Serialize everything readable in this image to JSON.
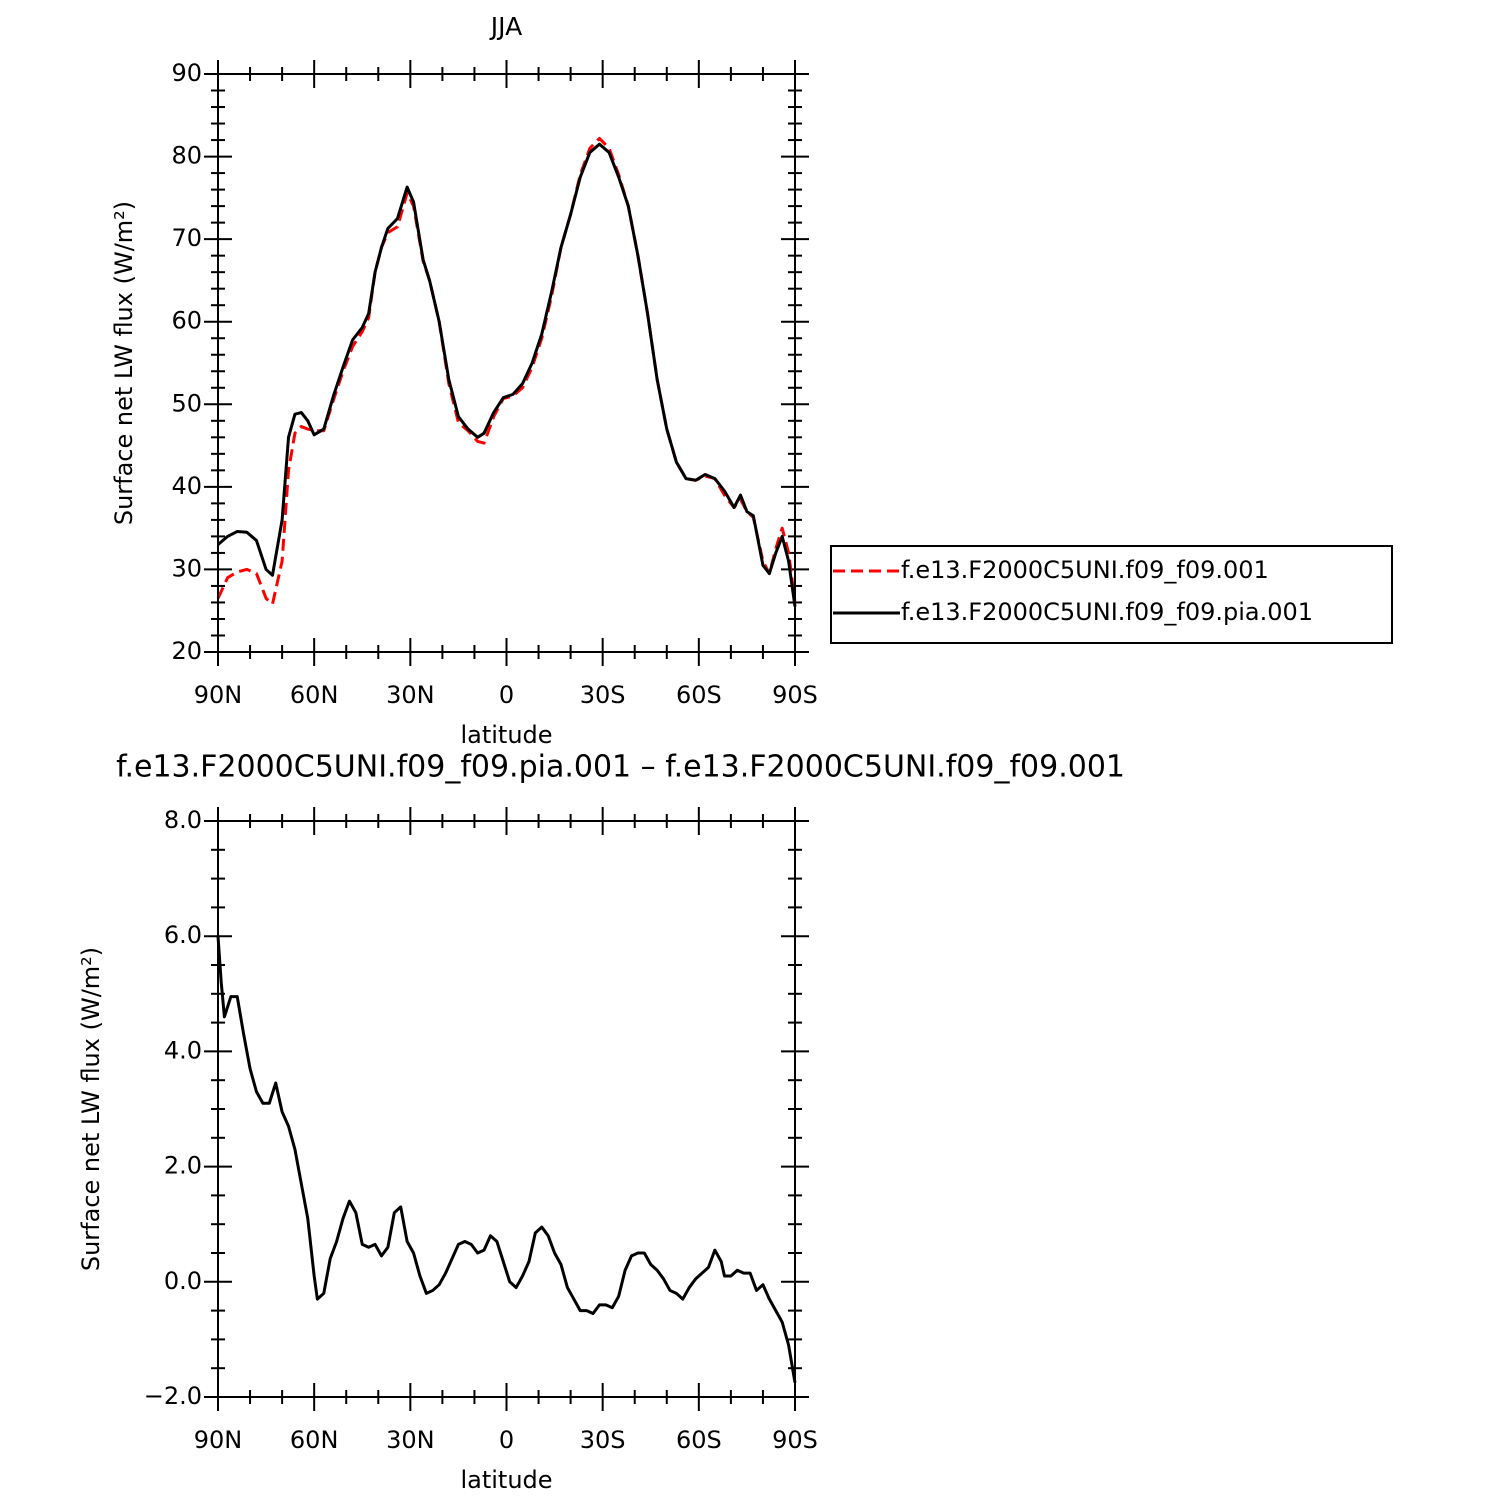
{
  "chart_data": [
    {
      "type": "line",
      "title": "JJA",
      "xlabel": "latitude",
      "ylabel": "Surface net LW flux (W/m²)",
      "x": [
        90,
        87,
        84,
        81,
        78,
        75,
        73,
        70,
        68,
        66,
        64,
        62,
        60,
        57,
        54,
        51,
        48,
        45,
        43,
        41,
        39,
        37,
        34,
        31,
        29,
        26,
        24,
        21,
        18,
        15,
        12,
        9,
        7,
        4,
        1,
        -2,
        -5,
        -8,
        -11,
        -14,
        -17,
        -20,
        -23,
        -26,
        -29,
        -32,
        -35,
        -38,
        -41,
        -44,
        -47,
        -50,
        -53,
        -56,
        -59,
        -62,
        -65,
        -68,
        -71,
        -73,
        -75,
        -77,
        -80,
        -82,
        -84,
        -86,
        -88,
        -90
      ],
      "series": [
        {
          "name": "f.e13.F2000C5UNI.f09_f09.001",
          "color": "#ff0000",
          "linestyle": "dashed",
          "values": [
            26.5,
            29,
            29.7,
            30,
            29.5,
            26.5,
            25.8,
            31,
            42,
            46.5,
            47.3,
            47,
            46.8,
            46.8,
            50.5,
            54,
            57,
            58.8,
            60.5,
            66,
            69,
            70.8,
            71.5,
            75.6,
            74,
            67.3,
            65,
            60,
            52.5,
            47.8,
            46.8,
            45.5,
            45.3,
            48.5,
            50.7,
            51,
            52,
            54.5,
            58,
            63,
            69,
            73,
            77.8,
            81,
            82.2,
            81,
            77.8,
            74,
            68,
            61,
            53,
            47,
            43,
            41,
            40.8,
            41.3,
            41,
            39,
            37.5,
            38.5,
            37,
            36.3,
            31,
            29.5,
            32.5,
            35,
            32,
            26
          ]
        },
        {
          "name": "f.e13.F2000C5UNI.f09_f09.pia.001",
          "color": "#000000",
          "linestyle": "solid",
          "values": [
            33,
            34,
            34.6,
            34.5,
            33.5,
            30,
            29.3,
            36,
            46,
            48.8,
            49,
            48,
            46.3,
            47,
            51,
            54.5,
            57.8,
            59.3,
            61,
            66,
            69,
            71.3,
            72.5,
            76.3,
            74.5,
            67.5,
            65,
            60,
            53,
            48.5,
            47,
            46,
            46.5,
            49,
            50.8,
            51.2,
            52.5,
            55,
            58.5,
            63.5,
            69,
            73,
            77.5,
            80.5,
            81.5,
            80.5,
            77.5,
            74,
            68,
            61,
            53,
            47,
            43,
            41,
            40.8,
            41.5,
            41,
            39.5,
            37.5,
            39,
            37,
            36.5,
            30.5,
            29.5,
            32,
            34,
            31,
            25.5
          ]
        }
      ],
      "xlim": [
        90,
        -90
      ],
      "xticks": [
        {
          "value": 90,
          "label": "90N"
        },
        {
          "value": 60,
          "label": "60N"
        },
        {
          "value": 30,
          "label": "30N"
        },
        0,
        {
          "value": -30,
          "label": "30S"
        },
        {
          "value": -60,
          "label": "60S"
        },
        {
          "value": -90,
          "label": "90S"
        }
      ],
      "ylim": [
        20,
        90
      ],
      "yticks": [
        20,
        30,
        40,
        50,
        60,
        70,
        80,
        90
      ],
      "legend": "right"
    },
    {
      "type": "line",
      "title": "f.e13.F2000C5UNI.f09_f09.pia.001 – f.e13.F2000C5UNI.f09_f09.001",
      "xlabel": "latitude",
      "ylabel": "Surface net LW flux (W/m²)",
      "x": [
        90,
        89,
        88,
        86,
        84,
        82,
        80,
        78,
        76,
        74,
        72,
        70,
        68,
        66,
        64,
        62,
        60,
        59,
        57,
        55,
        53,
        51,
        49,
        47,
        45,
        43,
        41,
        39,
        37,
        35,
        33,
        31,
        29,
        27,
        25,
        23,
        21,
        19,
        17,
        15,
        13,
        11,
        9,
        7,
        5,
        3,
        1,
        -1,
        -3,
        -5,
        -7,
        -9,
        -11,
        -13,
        -15,
        -17,
        -19,
        -21,
        -23,
        -25,
        -27,
        -29,
        -31,
        -33,
        -35,
        -37,
        -39,
        -41,
        -43,
        -45,
        -47,
        -49,
        -51,
        -53,
        -55,
        -57,
        -59,
        -61,
        -63,
        -65,
        -67,
        -68,
        -70,
        -72,
        -74,
        -76,
        -78,
        -80,
        -82,
        -84,
        -86,
        -88,
        -90
      ],
      "series": [
        {
          "color": "#000000",
          "linestyle": "solid",
          "values": [
            6.0,
            5.2,
            4.6,
            4.95,
            4.95,
            4.3,
            3.7,
            3.3,
            3.1,
            3.1,
            3.45,
            2.95,
            2.7,
            2.3,
            1.7,
            1.1,
            0.1,
            -0.3,
            -0.2,
            0.4,
            0.7,
            1.1,
            1.4,
            1.2,
            0.65,
            0.6,
            0.65,
            0.45,
            0.6,
            1.2,
            1.3,
            0.7,
            0.5,
            0.1,
            -0.2,
            -0.15,
            -0.05,
            0.15,
            0.4,
            0.65,
            0.7,
            0.65,
            0.5,
            0.55,
            0.8,
            0.7,
            0.35,
            0.0,
            -0.1,
            0.1,
            0.35,
            0.85,
            0.95,
            0.8,
            0.5,
            0.3,
            -0.1,
            -0.3,
            -0.5,
            -0.5,
            -0.55,
            -0.4,
            -0.4,
            -0.45,
            -0.25,
            0.2,
            0.45,
            0.5,
            0.5,
            0.3,
            0.2,
            0.05,
            -0.15,
            -0.2,
            -0.3,
            -0.1,
            0.05,
            0.15,
            0.25,
            0.55,
            0.35,
            0.1,
            0.1,
            0.2,
            0.15,
            0.15,
            -0.15,
            -0.05,
            -0.3,
            -0.5,
            -0.7,
            -1.1,
            -1.75
          ]
        }
      ],
      "xlim": [
        90,
        -90
      ],
      "xticks": [
        {
          "value": 90,
          "label": "90N"
        },
        {
          "value": 60,
          "label": "60N"
        },
        {
          "value": 30,
          "label": "30N"
        },
        0,
        {
          "value": -30,
          "label": "30S"
        },
        {
          "value": -60,
          "label": "60S"
        },
        {
          "value": -90,
          "label": "90S"
        }
      ],
      "ylim": [
        -2,
        8
      ],
      "yticks": [
        {
          "value": -2,
          "label": "−2.0"
        },
        {
          "value": 0,
          "label": "0.0"
        },
        {
          "value": 2,
          "label": "2.0"
        },
        {
          "value": 4,
          "label": "4.0"
        },
        {
          "value": 6,
          "label": "6.0"
        },
        {
          "value": 8,
          "label": "8.0"
        }
      ]
    }
  ]
}
